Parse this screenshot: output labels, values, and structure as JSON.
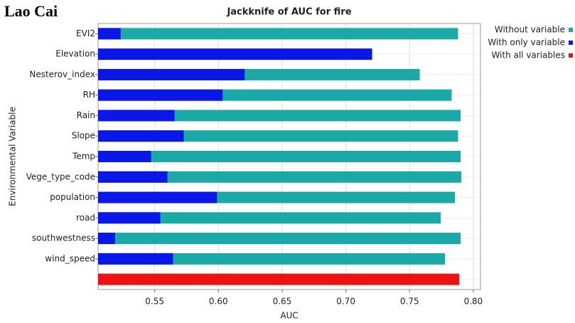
{
  "panel_label": "Lao Cai",
  "chart_data": {
    "type": "bar",
    "orientation": "horizontal",
    "title": "Jackknife of AUC for fire",
    "x_label": "AUC",
    "y_label": "Environmental Variable",
    "categories": [
      "EVI2",
      "Elevation",
      "Nesterov_index",
      "RH",
      "Rain",
      "Slope",
      "Temp",
      "Vege_type_code",
      "population",
      "road",
      "southwestness",
      "wind_speed",
      null
    ],
    "series": [
      {
        "name": "Without variable",
        "color": "#1aa9a6",
        "values": [
          0.788,
          null,
          0.758,
          0.783,
          0.79,
          0.788,
          0.79,
          0.7906,
          0.7856,
          0.7744,
          0.79,
          0.7778,
          null
        ]
      },
      {
        "name": "With only variable",
        "color": "#0b16e8",
        "values": [
          0.5233,
          0.7206,
          0.6206,
          0.6033,
          0.5656,
          0.5728,
          0.5472,
          0.56,
          0.5989,
          0.5544,
          0.5189,
          0.5644,
          null
        ]
      },
      {
        "name": "With all variables",
        "color": "#ee1111",
        "values": [
          null,
          null,
          null,
          null,
          null,
          null,
          null,
          null,
          null,
          null,
          null,
          null,
          0.789
        ]
      }
    ],
    "xlim": [
      0.5056,
      0.8056
    ],
    "xticks": [
      0.55,
      {
        "value": 0.6,
        "label": "0.60"
      },
      0.65,
      {
        "value": 0.7,
        "label": "0.70"
      },
      0.75,
      {
        "value": 0.8,
        "label": "0.80"
      }
    ],
    "grid": true,
    "legend": "right"
  }
}
